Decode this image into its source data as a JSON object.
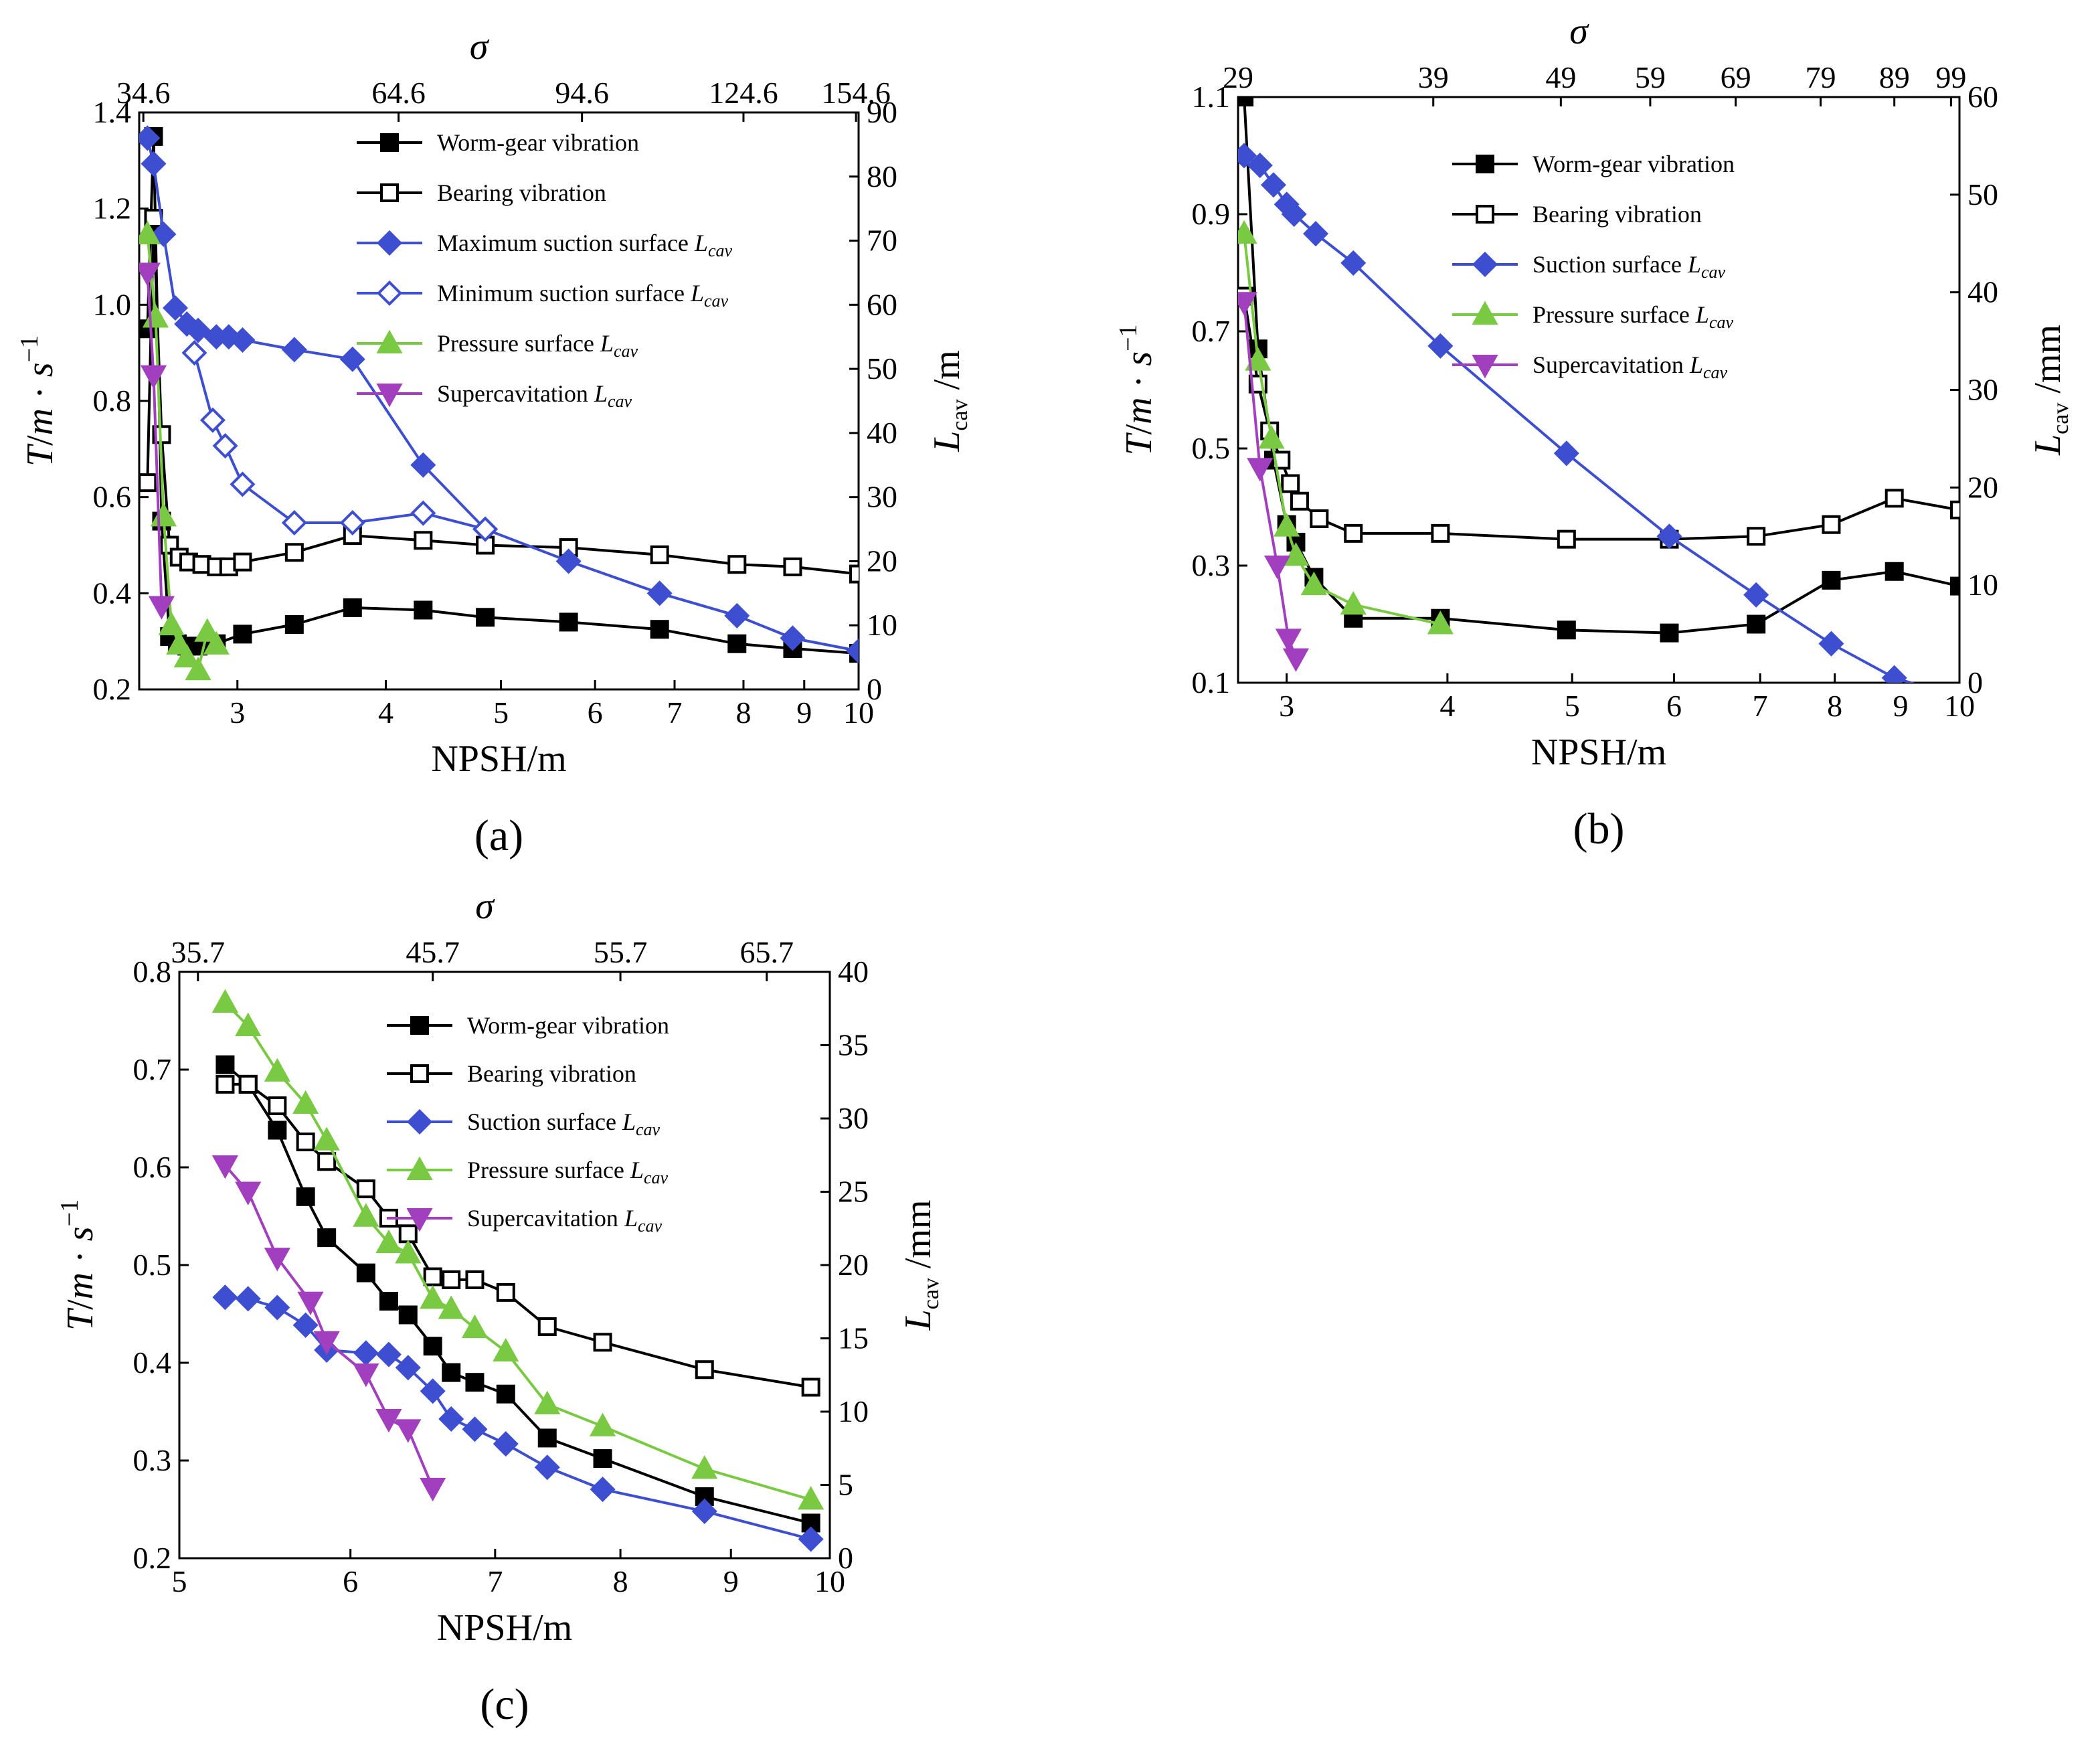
{
  "panels": [
    {
      "id": "a",
      "caption": "(a)",
      "xlabel": "NPSH/m",
      "ylabel_left": [
        "T",
        "/",
        "m",
        " · ",
        "s",
        "−1"
      ],
      "ylabel_right": [
        "L",
        "cav",
        " /m"
      ],
      "top_axis_label": "σ",
      "xticks": [
        3,
        4,
        5,
        6,
        7,
        8,
        9,
        10
      ],
      "xlim": [
        2.48,
        10
      ],
      "xscale": "log",
      "ylim_left": [
        0.2,
        1.4
      ],
      "yticks_left": [
        "0.2",
        "0.4",
        "0.6",
        "0.8",
        "1.0",
        "1.2",
        "1.4"
      ],
      "ylim_right": [
        0,
        90
      ],
      "yticks_right": [
        "0",
        "10",
        "20",
        "30",
        "40",
        "50",
        "60",
        "70",
        "80",
        "90"
      ],
      "top_ticks": [
        {
          "label": "34.6",
          "at_npsh": 2.5
        },
        {
          "label": "64.6",
          "at_npsh": 4.1
        },
        {
          "label": "94.6",
          "at_npsh": 5.85
        },
        {
          "label": "124.6",
          "at_npsh": 8.0
        },
        {
          "label": "154.6",
          "at_npsh": 9.95
        }
      ],
      "legend": "top-right",
      "grid": false
    },
    {
      "id": "b",
      "caption": "(b)",
      "xlabel": "NPSH/m",
      "ylabel_left": [
        "T",
        "/",
        "m",
        " · ",
        "s",
        "−1"
      ],
      "ylabel_right": [
        "L",
        "cav",
        " /mm"
      ],
      "top_axis_label": "σ",
      "xticks": [
        3,
        4,
        5,
        6,
        7,
        8,
        9,
        10
      ],
      "xlim": [
        2.75,
        10
      ],
      "xscale": "log",
      "ylim_left": [
        0.1,
        1.1
      ],
      "yticks_left": [
        "0.1",
        "0.3",
        "0.5",
        "0.7",
        "0.9",
        "1.1"
      ],
      "ylim_right": [
        0,
        60
      ],
      "yticks_right": [
        "0",
        "10",
        "20",
        "30",
        "40",
        "50",
        "60"
      ],
      "top_ticks": [
        {
          "label": "29",
          "at_npsh": 2.75
        },
        {
          "label": "39",
          "at_npsh": 3.9
        },
        {
          "label": "49",
          "at_npsh": 4.9
        },
        {
          "label": "59",
          "at_npsh": 5.75
        },
        {
          "label": "69",
          "at_npsh": 6.7
        },
        {
          "label": "79",
          "at_npsh": 7.8
        },
        {
          "label": "89",
          "at_npsh": 8.9
        },
        {
          "label": "99",
          "at_npsh": 9.85
        }
      ],
      "legend": "top-right",
      "grid": false
    },
    {
      "id": "c",
      "caption": "(c)",
      "xlabel": "NPSH/m",
      "ylabel_left": [
        "T",
        "/",
        "m",
        " · ",
        "s",
        "−1"
      ],
      "ylabel_right": [
        "L",
        "cav",
        " /mm"
      ],
      "top_axis_label": "σ",
      "xticks": [
        5,
        6,
        7,
        8,
        9,
        10
      ],
      "xlim": [
        5,
        10
      ],
      "xscale": "log",
      "ylim_left": [
        0.2,
        0.8
      ],
      "yticks_left": [
        "0.2",
        "0.3",
        "0.4",
        "0.5",
        "0.6",
        "0.7",
        "0.8"
      ],
      "ylim_right": [
        0,
        40
      ],
      "yticks_right": [
        "0",
        "5",
        "10",
        "15",
        "20",
        "25",
        "30",
        "35",
        "40"
      ],
      "top_ticks": [
        {
          "label": "35.7",
          "at_npsh": 5.1
        },
        {
          "label": "45.7",
          "at_npsh": 6.55
        },
        {
          "label": "55.7",
          "at_npsh": 8.0
        },
        {
          "label": "65.7",
          "at_npsh": 9.35
        }
      ],
      "legend": "top-right",
      "grid": false
    }
  ],
  "chart_data": [
    {
      "panel": "a",
      "type": "line",
      "series": [
        {
          "name": "Worm-gear vibration",
          "axis": "left",
          "color": "#000000",
          "marker": "square-filled",
          "x": [
            2.52,
            2.55,
            2.59,
            2.63,
            2.67,
            2.72,
            2.78,
            2.88,
            3.03,
            3.35,
            3.75,
            4.3,
            4.85,
            5.7,
            6.8,
            7.9,
            8.8,
            10.0
          ],
          "y": [
            0.95,
            1.35,
            0.55,
            0.31,
            0.295,
            0.29,
            0.29,
            0.295,
            0.315,
            0.335,
            0.37,
            0.365,
            0.35,
            0.34,
            0.325,
            0.295,
            0.285,
            0.275
          ]
        },
        {
          "name": "Bearing vibration",
          "axis": "left",
          "color": "#000000",
          "marker": "square-open",
          "x": [
            2.52,
            2.55,
            2.59,
            2.63,
            2.68,
            2.73,
            2.8,
            2.88,
            2.95,
            3.03,
            3.35,
            3.75,
            4.3,
            4.85,
            5.7,
            6.8,
            7.9,
            8.8,
            10.0
          ],
          "y": [
            0.63,
            1.18,
            0.73,
            0.5,
            0.475,
            0.465,
            0.46,
            0.455,
            0.455,
            0.465,
            0.485,
            0.52,
            0.51,
            0.5,
            0.495,
            0.48,
            0.46,
            0.455,
            0.44
          ]
        },
        {
          "name": "Maximum suction surface L_cav",
          "axis": "right",
          "color": "#3d4fd0",
          "marker": "diamond-filled",
          "x": [
            2.52,
            2.55,
            2.6,
            2.66,
            2.72,
            2.78,
            2.88,
            2.95,
            3.03,
            3.35,
            3.75,
            4.3,
            4.85,
            5.7,
            6.8,
            7.9,
            8.8,
            10.0
          ],
          "y": [
            86,
            82,
            71,
            59.5,
            57,
            56,
            55,
            55,
            54.5,
            53,
            51.5,
            35,
            25,
            20,
            15,
            11.5,
            8,
            6
          ]
        },
        {
          "name": "Minimum suction surface L_cav",
          "axis": "right",
          "color": "#3d4fd0",
          "marker": "diamond-open",
          "x": [
            2.76,
            2.86,
            2.93,
            3.03,
            3.35,
            3.75,
            4.3,
            4.85
          ],
          "y": [
            52.5,
            42,
            38,
            32,
            26,
            26,
            27.5,
            25
          ]
        },
        {
          "name": "Pressure surface L_cav",
          "axis": "right",
          "color": "#7ac943",
          "marker": "triangle-up-filled",
          "x": [
            2.52,
            2.56,
            2.6,
            2.64,
            2.68,
            2.72,
            2.78,
            2.83,
            2.88
          ],
          "y": [
            71,
            58,
            27,
            10,
            7,
            5,
            3,
            9,
            7
          ]
        },
        {
          "name": "Supercavitation L_cav",
          "axis": "right",
          "color": "#a13fbf",
          "marker": "triangle-down-filled",
          "x": [
            2.52,
            2.55,
            2.59
          ],
          "y": [
            65,
            49,
            13
          ]
        }
      ]
    },
    {
      "panel": "b",
      "type": "line",
      "series": [
        {
          "name": "Worm-gear vibration",
          "axis": "left",
          "color": "#000000",
          "marker": "square-filled",
          "x": [
            2.78,
            2.85,
            2.93,
            3.0,
            3.05,
            3.15,
            3.38,
            3.95,
            4.95,
            5.95,
            6.95,
            7.95,
            8.9,
            10.0
          ],
          "y": [
            1.1,
            0.67,
            0.48,
            0.37,
            0.34,
            0.28,
            0.21,
            0.21,
            0.19,
            0.185,
            0.2,
            0.275,
            0.29,
            0.265
          ]
        },
        {
          "name": "Bearing vibration",
          "axis": "left",
          "color": "#000000",
          "marker": "square-open",
          "x": [
            2.78,
            2.85,
            2.91,
            2.97,
            3.02,
            3.07,
            3.18,
            3.38,
            3.95,
            4.95,
            5.95,
            6.95,
            7.95,
            8.9,
            10.0
          ],
          "y": [
            0.76,
            0.61,
            0.53,
            0.48,
            0.44,
            0.41,
            0.38,
            0.355,
            0.355,
            0.345,
            0.345,
            0.35,
            0.37,
            0.415,
            0.395
          ]
        },
        {
          "name": "Suction surface L_cav",
          "axis": "right",
          "color": "#3d4fd0",
          "marker": "diamond-filled",
          "x": [
            2.78,
            2.86,
            2.93,
            3.0,
            3.04,
            3.16,
            3.38,
            3.95,
            4.95,
            5.95,
            6.95,
            7.95,
            8.9,
            10.0
          ],
          "y": [
            54,
            53,
            51,
            49,
            48,
            46,
            43,
            34.5,
            23.5,
            15,
            9,
            4,
            0.5,
            -1.5
          ]
        },
        {
          "name": "Pressure surface L_cav",
          "axis": "right",
          "color": "#7ac943",
          "marker": "triangle-up-filled",
          "x": [
            2.78,
            2.85,
            2.92,
            3.0,
            3.05,
            3.15,
            3.38,
            3.95
          ],
          "y": [
            46,
            33,
            25,
            16,
            13,
            10,
            8,
            6
          ]
        },
        {
          "name": "Supercavitation L_cav",
          "axis": "right",
          "color": "#a13fbf",
          "marker": "triangle-down-filled",
          "x": [
            2.78,
            2.86,
            2.95,
            3.01,
            3.05
          ],
          "y": [
            39,
            22,
            12,
            4.5,
            2.5
          ]
        }
      ]
    },
    {
      "panel": "c",
      "type": "line",
      "series": [
        {
          "name": "Worm-gear vibration",
          "axis": "left",
          "color": "#000000",
          "marker": "square-filled",
          "x": [
            5.25,
            5.38,
            5.55,
            5.72,
            5.85,
            6.1,
            6.25,
            6.38,
            6.55,
            6.68,
            6.85,
            7.08,
            7.4,
            7.85,
            8.75,
            9.8
          ],
          "y": [
            0.705,
            0.685,
            0.638,
            0.57,
            0.528,
            0.492,
            0.463,
            0.449,
            0.417,
            0.39,
            0.38,
            0.368,
            0.323,
            0.302,
            0.263,
            0.236
          ]
        },
        {
          "name": "Bearing vibration",
          "axis": "left",
          "color": "#000000",
          "marker": "square-open",
          "x": [
            5.25,
            5.38,
            5.55,
            5.72,
            5.85,
            6.1,
            6.25,
            6.38,
            6.55,
            6.68,
            6.85,
            7.08,
            7.4,
            7.85,
            8.75,
            9.8
          ],
          "y": [
            0.685,
            0.685,
            0.663,
            0.626,
            0.606,
            0.578,
            0.548,
            0.532,
            0.488,
            0.485,
            0.485,
            0.472,
            0.437,
            0.421,
            0.393,
            0.375
          ]
        },
        {
          "name": "Suction surface L_cav",
          "axis": "right",
          "color": "#3d4fd0",
          "marker": "diamond-filled",
          "x": [
            5.25,
            5.38,
            5.55,
            5.72,
            5.85,
            6.1,
            6.25,
            6.38,
            6.55,
            6.68,
            6.85,
            7.08,
            7.4,
            7.85,
            8.75,
            9.8
          ],
          "y": [
            17.8,
            17.7,
            17.1,
            15.9,
            14.2,
            14.0,
            13.9,
            13.0,
            11.4,
            9.5,
            8.8,
            7.8,
            6.2,
            4.7,
            3.2,
            1.3
          ]
        },
        {
          "name": "Pressure surface L_cav",
          "axis": "right",
          "color": "#7ac943",
          "marker": "triangle-up-filled",
          "x": [
            5.25,
            5.38,
            5.55,
            5.72,
            5.85,
            6.1,
            6.25,
            6.38,
            6.55,
            6.68,
            6.85,
            7.08,
            7.4,
            7.85,
            8.75,
            9.8
          ],
          "y": [
            37.9,
            36.3,
            33.2,
            31.0,
            28.5,
            23.3,
            21.5,
            20.8,
            17.7,
            17.0,
            15.7,
            14.1,
            10.5,
            9.0,
            6.1,
            4.0
          ]
        },
        {
          "name": "Supercavitation L_cav",
          "axis": "right",
          "color": "#a13fbf",
          "marker": "triangle-down-filled",
          "x": [
            5.25,
            5.38,
            5.55,
            5.75,
            5.85,
            6.1,
            6.25,
            6.38,
            6.55
          ],
          "y": [
            26.8,
            25.0,
            20.5,
            17.5,
            14.8,
            12.6,
            9.5,
            8.8,
            4.8
          ]
        }
      ]
    }
  ]
}
